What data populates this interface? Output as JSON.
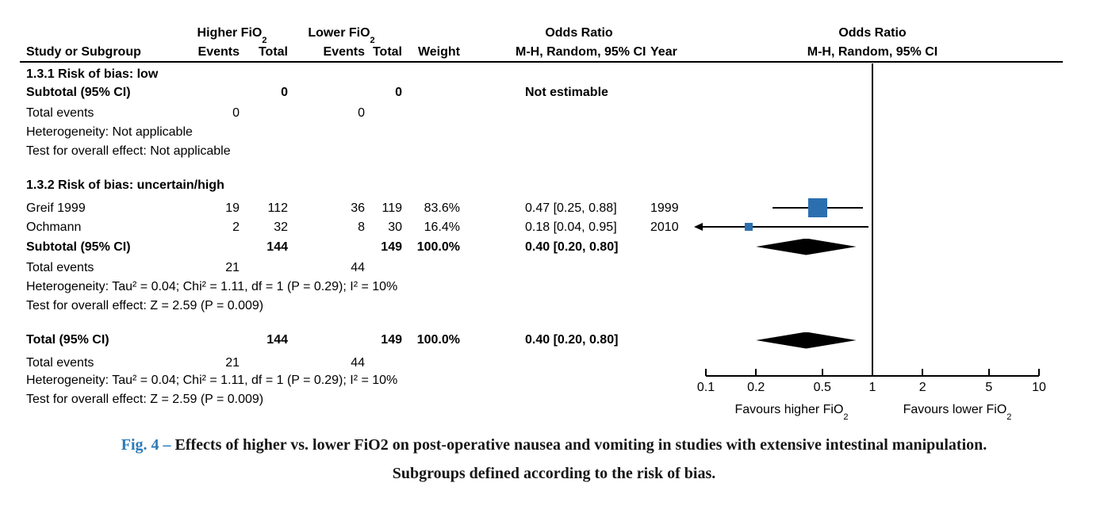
{
  "colors": {
    "marker_blue": "#2b6fb0",
    "caption_accent": "#2d7bb8",
    "line_black": "#000000"
  },
  "header": {
    "group1": {
      "base": "Higher FiO",
      "sub": "2"
    },
    "group2": {
      "base": "Lower FiO",
      "sub": "2"
    },
    "or_left_title": "Odds Ratio",
    "or_right_title": "Odds Ratio",
    "cols": {
      "study": "Study or Subgroup",
      "events1": "Events",
      "total1": "Total",
      "events2": "Events",
      "total2": "Total",
      "weight": "Weight",
      "mh_ci": "M-H, Random, 95% CI",
      "year": "Year",
      "mh_ci_right": "M-H, Random, 95% CI"
    }
  },
  "table": {
    "group1": {
      "title": "1.3.1 Risk of bias: low",
      "subtotal": {
        "label": "Subtotal (95% CI)",
        "t1": "0",
        "t2": "0",
        "or": "Not estimable"
      },
      "total_events": {
        "label": "Total events",
        "v1": "0",
        "v2": "0"
      },
      "heterogeneity": "Heterogeneity: Not applicable",
      "overall": "Test for overall effect: Not applicable"
    },
    "group2": {
      "title": "1.3.2 Risk of bias: uncertain/high",
      "studies": [
        {
          "name": "Greif 1999",
          "e1": "19",
          "t1": "112",
          "e2": "36",
          "t2": "119",
          "weight": "83.6%",
          "or": "0.47 [0.25, 0.88]",
          "year": "1999"
        },
        {
          "name": "Ochmann",
          "e1": "2",
          "t1": "32",
          "e2": "8",
          "t2": "30",
          "weight": "16.4%",
          "or": "0.18 [0.04, 0.95]",
          "year": "2010"
        }
      ],
      "subtotal": {
        "label": "Subtotal (95% CI)",
        "t1": "144",
        "t2": "149",
        "weight": "100.0%",
        "or": "0.40 [0.20, 0.80]"
      },
      "total_events": {
        "label": "Total events",
        "v1": "21",
        "v2": "44"
      },
      "heterogeneity": "Heterogeneity: Tau² = 0.04; Chi² = 1.11, df = 1 (P = 0.29); I² = 10%",
      "overall": "Test for overall effect: Z = 2.59 (P = 0.009)"
    },
    "total": {
      "label": "Total (95% CI)",
      "t1": "144",
      "t2": "149",
      "weight": "100.0%",
      "or": "0.40 [0.20, 0.80]",
      "total_events": {
        "label": "Total events",
        "v1": "21",
        "v2": "44"
      },
      "heterogeneity": "Heterogeneity: Tau² = 0.04; Chi² = 1.11, df = 1 (P = 0.29); I² = 10%",
      "overall": "Test for overall effect: Z = 2.59 (P = 0.009)"
    }
  },
  "axis": {
    "ticks": [
      "0.1",
      "0.2",
      "0.5",
      "1",
      "2",
      "5",
      "10"
    ],
    "left_label": {
      "base": "Favours higher FiO",
      "sub": "2"
    },
    "right_label": {
      "base": "Favours lower FiO",
      "sub": "2"
    }
  },
  "caption": {
    "fig": "Fig. 4 – ",
    "line1": "Effects of higher vs. lower FiO2 on post-operative nausea and vomiting in studies with extensive intestinal manipulation.",
    "line2": "Subgroups defined according to the risk of bias."
  },
  "chart_data": {
    "type": "forest",
    "effect_measure": "Odds Ratio, M-H, Random, 95% CI",
    "x_scale": "log10",
    "x_range": [
      0.1,
      10
    ],
    "x_ticks": [
      0.1,
      0.2,
      0.5,
      1,
      2,
      5,
      10
    ],
    "null_value": 1,
    "axis_labels": {
      "left": "Favours higher FiO2",
      "right": "Favours lower FiO2"
    },
    "subgroups": [
      {
        "id": "1.3.1",
        "label": "Risk of bias: low",
        "studies": [],
        "totals": [
          0,
          0
        ],
        "total_events": [
          0,
          0
        ],
        "subtotal": null,
        "subtotal_text": "Not estimable",
        "heterogeneity": "Not applicable",
        "overall_effect": "Not applicable"
      },
      {
        "id": "1.3.2",
        "label": "Risk of bias: uncertain/high",
        "studies": [
          {
            "name": "Greif 1999",
            "events_higher": 19,
            "total_higher": 112,
            "events_lower": 36,
            "total_lower": 119,
            "weight_pct": 83.6,
            "or": 0.47,
            "ci": [
              0.25,
              0.88
            ],
            "year": 1999
          },
          {
            "name": "Ochmann",
            "events_higher": 2,
            "total_higher": 32,
            "events_lower": 8,
            "total_lower": 30,
            "weight_pct": 16.4,
            "or": 0.18,
            "ci": [
              0.04,
              0.95
            ],
            "year": 2010
          }
        ],
        "totals": [
          144,
          149
        ],
        "total_events": [
          21,
          44
        ],
        "subtotal": {
          "or": 0.4,
          "ci": [
            0.2,
            0.8
          ],
          "weight_pct": 100.0
        },
        "heterogeneity": {
          "tau2": 0.04,
          "chi2": 1.11,
          "df": 1,
          "p": 0.29,
          "i2_pct": 10
        },
        "overall_effect": {
          "z": 2.59,
          "p": 0.009
        }
      }
    ],
    "total": {
      "or": 0.4,
      "ci": [
        0.2,
        0.8
      ],
      "weight_pct": 100.0,
      "totals": [
        144,
        149
      ],
      "total_events": [
        21,
        44
      ]
    }
  }
}
